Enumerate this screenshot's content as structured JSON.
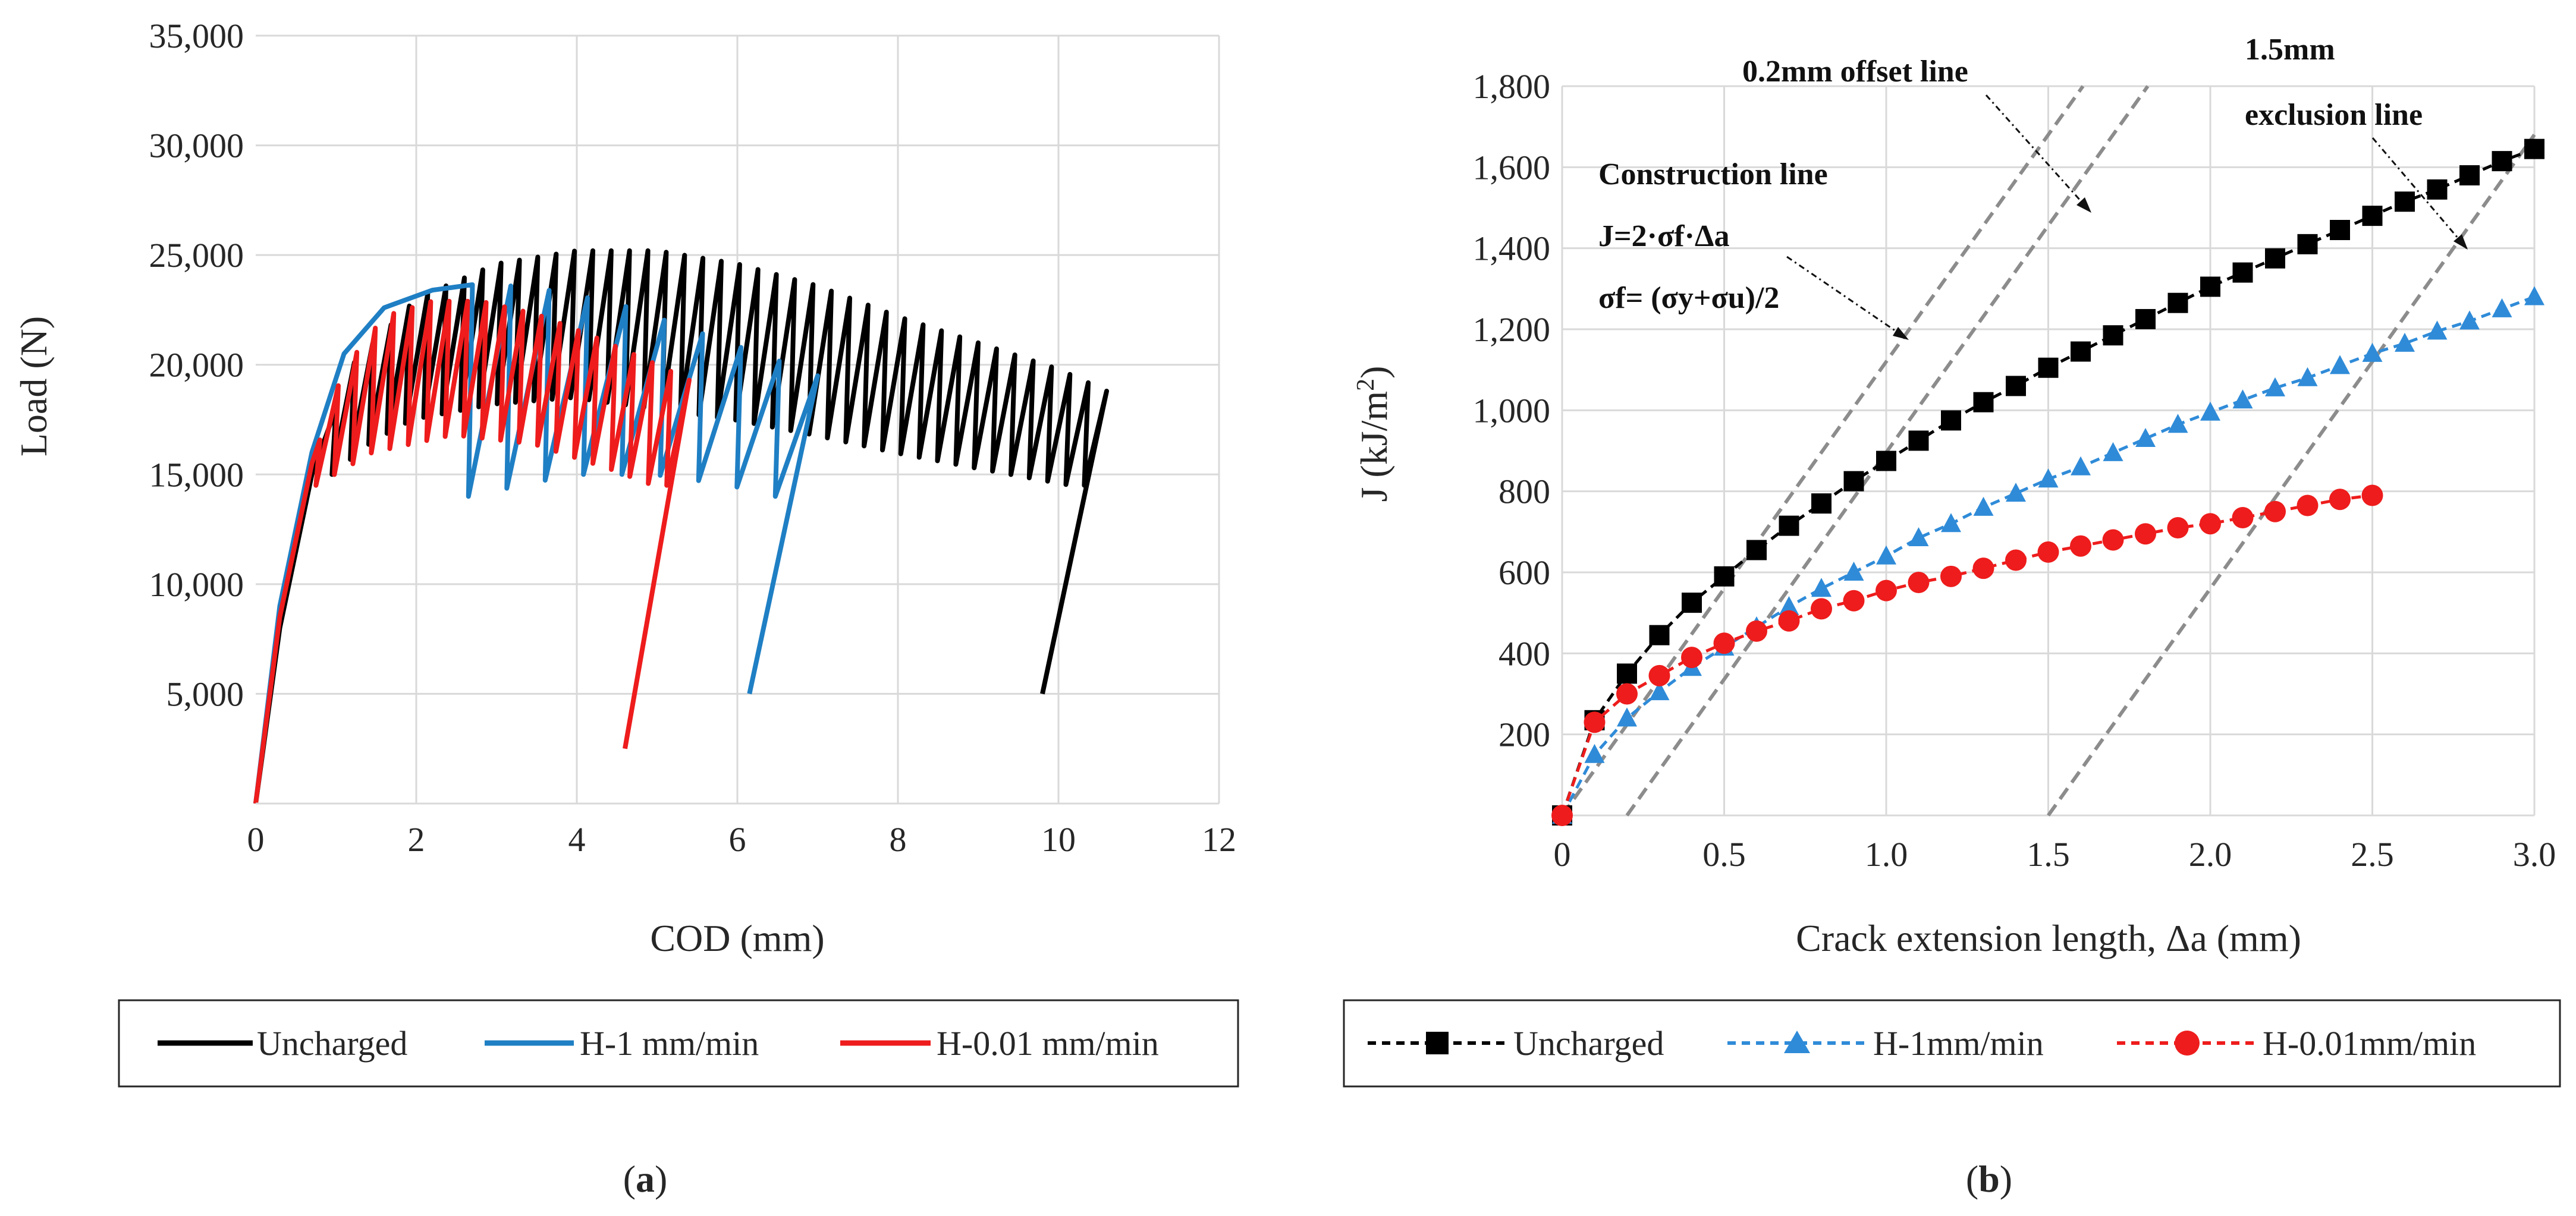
{
  "chart_data": [
    {
      "type": "line",
      "panel_label": "(a)",
      "panel_letter": "a",
      "xlabel": "COD (mm)",
      "ylabel": "Load (N)",
      "xlim": [
        0,
        12
      ],
      "ylim": [
        0,
        35000
      ],
      "xticks": [
        "0",
        "2",
        "4",
        "6",
        "8",
        "10",
        "12"
      ],
      "yticks": [
        "5,000",
        "10,000",
        "15,000",
        "20,000",
        "25,000",
        "30,000",
        "35,000"
      ],
      "grid": true,
      "legend_position": "bottom",
      "series": [
        {
          "name": "Uncharged",
          "color": "#000000",
          "final_drop_to": [
            9.8,
            5000
          ],
          "envelope": [
            [
              0,
              0
            ],
            [
              0.3,
              8000
            ],
            [
              0.7,
              15000
            ],
            [
              1.2,
              20000
            ],
            [
              2.0,
              23000
            ],
            [
              3.0,
              24600
            ],
            [
              4.0,
              25200
            ],
            [
              5.0,
              25200
            ],
            [
              6.0,
              24600
            ],
            [
              7.0,
              23600
            ],
            [
              8.0,
              22200
            ],
            [
              9.0,
              21000
            ],
            [
              10.0,
              19800
            ],
            [
              10.6,
              18800
            ]
          ],
          "unload_min": [
            [
              1.0,
              15000
            ],
            [
              1.5,
              16500
            ],
            [
              2.0,
              17500
            ],
            [
              3.0,
              18200
            ],
            [
              4.0,
              18500
            ],
            [
              5.0,
              18000
            ],
            [
              6.0,
              17500
            ],
            [
              7.0,
              16800
            ],
            [
              8.0,
              16000
            ],
            [
              9.0,
              15300
            ],
            [
              10.2,
              14500
            ]
          ],
          "cycle_count": 42
        },
        {
          "name": "H-1 mm/min",
          "color": "#1f7fc4",
          "final_drop_to": [
            6.15,
            5000
          ],
          "envelope": [
            [
              0,
              0
            ],
            [
              0.3,
              9000
            ],
            [
              0.7,
              16000
            ],
            [
              1.1,
              20500
            ],
            [
              1.6,
              22600
            ],
            [
              2.2,
              23400
            ],
            [
              2.8,
              23700
            ],
            [
              3.5,
              23500
            ],
            [
              4.5,
              22800
            ],
            [
              5.5,
              21500
            ],
            [
              6.5,
              20200
            ],
            [
              7.0,
              19500
            ]
          ],
          "unload_min": [
            [
              2.7,
              14000
            ],
            [
              4.0,
              15000
            ],
            [
              5.0,
              15000
            ],
            [
              6.0,
              14500
            ],
            [
              6.3,
              14000
            ]
          ],
          "cycle_count": 9
        },
        {
          "name": "H-0.01 mm/min",
          "color": "#ee1c1c",
          "final_drop_to": [
            4.6,
            2500
          ],
          "envelope": [
            [
              0,
              0
            ],
            [
              0.3,
              8500
            ],
            [
              0.7,
              15500
            ],
            [
              1.1,
              19800
            ],
            [
              1.6,
              22200
            ],
            [
              2.2,
              22900
            ],
            [
              2.8,
              22900
            ],
            [
              3.5,
              22300
            ],
            [
              4.2,
              21300
            ],
            [
              5.0,
              20000
            ],
            [
              5.4,
              19300
            ]
          ],
          "unload_min": [
            [
              0.8,
              14500
            ],
            [
              1.5,
              16000
            ],
            [
              2.5,
              16800
            ],
            [
              3.5,
              16400
            ],
            [
              4.5,
              15200
            ],
            [
              5.0,
              14500
            ]
          ],
          "cycle_count": 20
        }
      ]
    },
    {
      "type": "line",
      "panel_label": "(b)",
      "panel_letter": "b",
      "xlabel": "Crack extension length, Δa (mm)",
      "ylabel_main": "J (kJ/m",
      "ylabel_sup": "2",
      "ylabel_end": ")",
      "xlim": [
        0,
        3
      ],
      "ylim": [
        0,
        1800
      ],
      "xticks": [
        "0",
        "0.5",
        "1.0",
        "1.5",
        "2.0",
        "2.5",
        "3.0"
      ],
      "yticks": [
        "200",
        "400",
        "600",
        "800",
        "1,000",
        "1,200",
        "1,400",
        "1,600",
        "1,800"
      ],
      "grid": true,
      "legend_position": "bottom",
      "series": [
        {
          "name": "Uncharged",
          "color": "#000000",
          "marker": "square",
          "x": [
            0,
            0.1,
            0.2,
            0.3,
            0.4,
            0.5,
            0.6,
            0.7,
            0.8,
            0.9,
            1.0,
            1.1,
            1.2,
            1.3,
            1.4,
            1.5,
            1.6,
            1.7,
            1.8,
            1.9,
            2.0,
            2.1,
            2.2,
            2.3,
            2.4,
            2.5,
            2.6,
            2.7,
            2.8,
            2.9,
            3.0
          ],
          "y": [
            0,
            235,
            350,
            445,
            525,
            590,
            655,
            715,
            770,
            825,
            875,
            925,
            975,
            1020,
            1060,
            1105,
            1145,
            1185,
            1225,
            1265,
            1305,
            1340,
            1375,
            1410,
            1445,
            1480,
            1515,
            1545,
            1580,
            1615,
            1645
          ]
        },
        {
          "name": "H-1mm/min",
          "color": "#2f8bd8",
          "marker": "triangle",
          "x": [
            0,
            0.1,
            0.2,
            0.3,
            0.4,
            0.5,
            0.6,
            0.7,
            0.8,
            0.9,
            1.0,
            1.1,
            1.2,
            1.3,
            1.4,
            1.5,
            1.6,
            1.7,
            1.8,
            1.9,
            2.0,
            2.1,
            2.2,
            2.3,
            2.4,
            2.5,
            2.6,
            2.7,
            2.8,
            2.9,
            3.0
          ],
          "y": [
            0,
            150,
            240,
            305,
            365,
            415,
            465,
            515,
            560,
            600,
            640,
            685,
            720,
            760,
            795,
            830,
            860,
            895,
            930,
            965,
            995,
            1025,
            1055,
            1080,
            1110,
            1140,
            1165,
            1195,
            1220,
            1250,
            1280
          ]
        },
        {
          "name": "H-0.01mm/min",
          "color": "#ee1c1c",
          "marker": "circle",
          "x": [
            0,
            0.1,
            0.2,
            0.3,
            0.4,
            0.5,
            0.6,
            0.7,
            0.8,
            0.9,
            1.0,
            1.1,
            1.2,
            1.3,
            1.4,
            1.5,
            1.6,
            1.7,
            1.8,
            1.9,
            2.0,
            2.1,
            2.2,
            2.3,
            2.4,
            2.5
          ],
          "y": [
            0,
            230,
            300,
            345,
            390,
            425,
            455,
            480,
            510,
            530,
            555,
            575,
            590,
            610,
            630,
            650,
            665,
            680,
            695,
            710,
            720,
            735,
            750,
            765,
            780,
            790
          ]
        }
      ],
      "reference_lines": [
        {
          "label": "Construction line",
          "slope": 1120,
          "x0": 0
        },
        {
          "label": "0.2mm offset line",
          "slope": 1120,
          "x0": 0.2
        },
        {
          "label": "1.5mm exclusion line",
          "slope": 1120,
          "x0": 1.5
        }
      ],
      "annotations": {
        "offset": "0.2mm offset line",
        "exclusion_line1": "1.5mm",
        "exclusion_line2": "exclusion line",
        "construction_title": "Construction line",
        "equation1": "J=2·σf·Δa",
        "equation2": "σf= (σy+σu)/2"
      },
      "line_color": "#8c8c8c"
    }
  ]
}
